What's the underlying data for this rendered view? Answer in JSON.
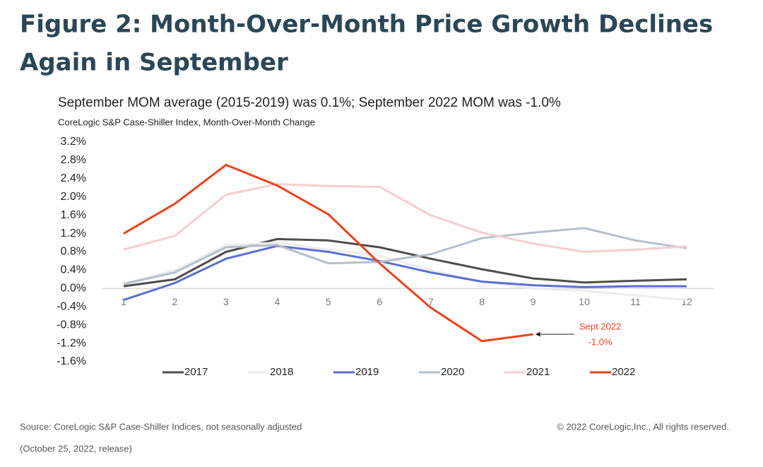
{
  "title_lines": [
    "Figure 2: Month-Over-Month Price Growth Declines",
    "Again in September"
  ],
  "chart_data": {
    "type": "line",
    "title": "September MOM average (2015-2019) was 0.1%; September 2022 MOM was -1.0%",
    "subtitle": "CoreLogic S&P Case-Shiller Index, Month-Over-Month Change",
    "x": [
      1,
      2,
      3,
      4,
      5,
      6,
      7,
      8,
      9,
      10,
      11,
      12
    ],
    "xlim": [
      1,
      12
    ],
    "xticks": [
      1,
      2,
      3,
      4,
      5,
      6,
      7,
      8,
      9,
      10,
      11,
      12
    ],
    "ylim": [
      -1.6,
      3.2
    ],
    "yticks": [
      {
        "value": -1.6,
        "label": "-1.6%"
      },
      {
        "value": -1.2,
        "label": "-1.2%"
      },
      {
        "value": -0.8,
        "label": "-0.8%"
      },
      {
        "value": -0.4,
        "label": "-0.4%"
      },
      {
        "value": 0,
        "label": "0.0%"
      },
      {
        "value": 0.4,
        "label": "0.4%"
      },
      {
        "value": 0.8,
        "label": "0.8%"
      },
      {
        "value": 1.2,
        "label": "1.2%"
      },
      {
        "value": 1.6,
        "label": "1.6%"
      },
      {
        "value": 2.0,
        "label": "2.0%"
      },
      {
        "value": 2.4,
        "label": "2.4%"
      },
      {
        "value": 2.8,
        "label": "2.8%"
      },
      {
        "value": 3.2,
        "label": "3.2%"
      }
    ],
    "grid": false,
    "legend": "bottom",
    "series": [
      {
        "name": "2017",
        "color": "#4d4d4d",
        "values": [
          0.05,
          0.2,
          0.8,
          1.08,
          1.05,
          0.9,
          0.65,
          0.42,
          0.22,
          0.13,
          0.17,
          0.2
        ]
      },
      {
        "name": "2018",
        "color": "#ececec",
        "values": [
          0.1,
          0.4,
          0.95,
          1.0,
          0.85,
          0.72,
          0.4,
          0.15,
          0.0,
          -0.05,
          -0.15,
          -0.25
        ]
      },
      {
        "name": "2019",
        "color": "#5b6fd1",
        "values": [
          -0.25,
          0.12,
          0.65,
          0.93,
          0.8,
          0.6,
          0.35,
          0.15,
          0.07,
          0.03,
          0.05,
          0.05
        ]
      },
      {
        "name": "2020",
        "color": "#b5bfcb",
        "values": [
          0.1,
          0.35,
          0.9,
          0.95,
          0.55,
          0.58,
          0.75,
          1.1,
          1.22,
          1.32,
          1.05,
          0.88
        ]
      },
      {
        "name": "2021",
        "color": "#f6cdd1",
        "values": [
          0.85,
          1.15,
          2.05,
          2.28,
          2.24,
          2.22,
          1.6,
          1.22,
          0.98,
          0.8,
          0.85,
          0.92
        ]
      },
      {
        "name": "2022",
        "color": "#e8431c",
        "values": [
          1.2,
          1.85,
          2.7,
          2.25,
          1.62,
          0.55,
          -0.42,
          -1.15,
          -1.0,
          null,
          null,
          null
        ]
      }
    ],
    "annotation": {
      "lines": [
        "Sept 2022",
        "-1.0%"
      ],
      "x": 9,
      "y": -1.0,
      "color": "#e8431c"
    }
  },
  "footer": {
    "source": "Source: CoreLogic S&P Case-Shiller Indices, not seasonally adjusted",
    "copyright": "© 2022 CoreLogic,Inc., All rights reserved.",
    "release": "(October 25, 2022, release)"
  }
}
